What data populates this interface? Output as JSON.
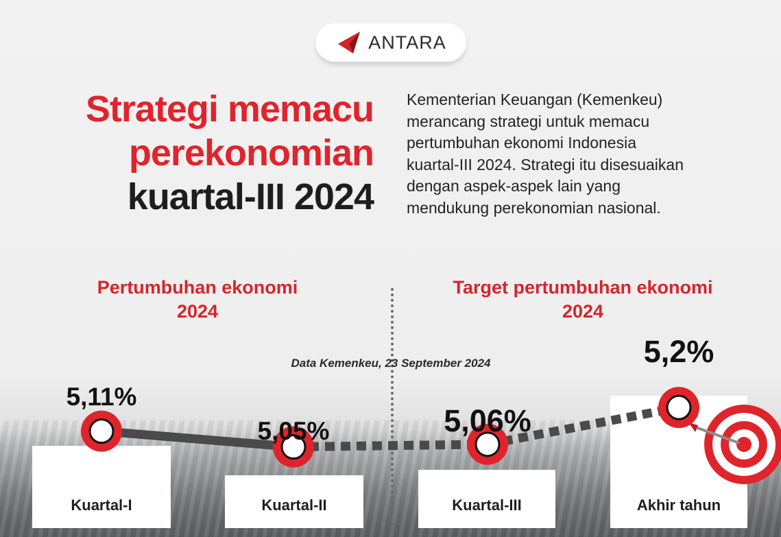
{
  "brand": {
    "logo_text": "ANTARA",
    "accent": "#e0242b"
  },
  "title_lines": [
    "Strategi memacu",
    "perekonomian",
    "kuartal-III 2024"
  ],
  "description_lines": [
    "Kementerian Keuangan (Kemenkeu)",
    "merancang strategi untuk memacu",
    "pertumbuhan ekonomi Indonesia",
    "kuartal-III 2024. Strategi itu disesuaikan",
    "dengan aspek-aspek lain yang",
    "mendukung perekonomian nasional."
  ],
  "sections": {
    "left_title": [
      "Pertumbuhan ekonomi",
      "2024"
    ],
    "right_title": [
      "Target pertumbuhan ekonomi",
      "2024"
    ]
  },
  "source": "Data Kemenkeu, 23 September 2024",
  "chart_data": {
    "type": "line",
    "categories": [
      "Kuartal-I",
      "Kuartal-II",
      "Kuartal-III",
      "Akhir tahun"
    ],
    "values": [
      5.11,
      5.05,
      5.06,
      5.2
    ],
    "value_labels": [
      "5,11%",
      "5,05%",
      "5,06%",
      "5,2%"
    ],
    "line_style": [
      "solid",
      "dashed",
      "dashed"
    ],
    "title": "",
    "xlabel": "",
    "ylabel": "",
    "ylim": [
      4.95,
      5.25
    ],
    "grid": false,
    "colors": {
      "marker": "#e0242b",
      "line": "#4a4a4a"
    }
  }
}
